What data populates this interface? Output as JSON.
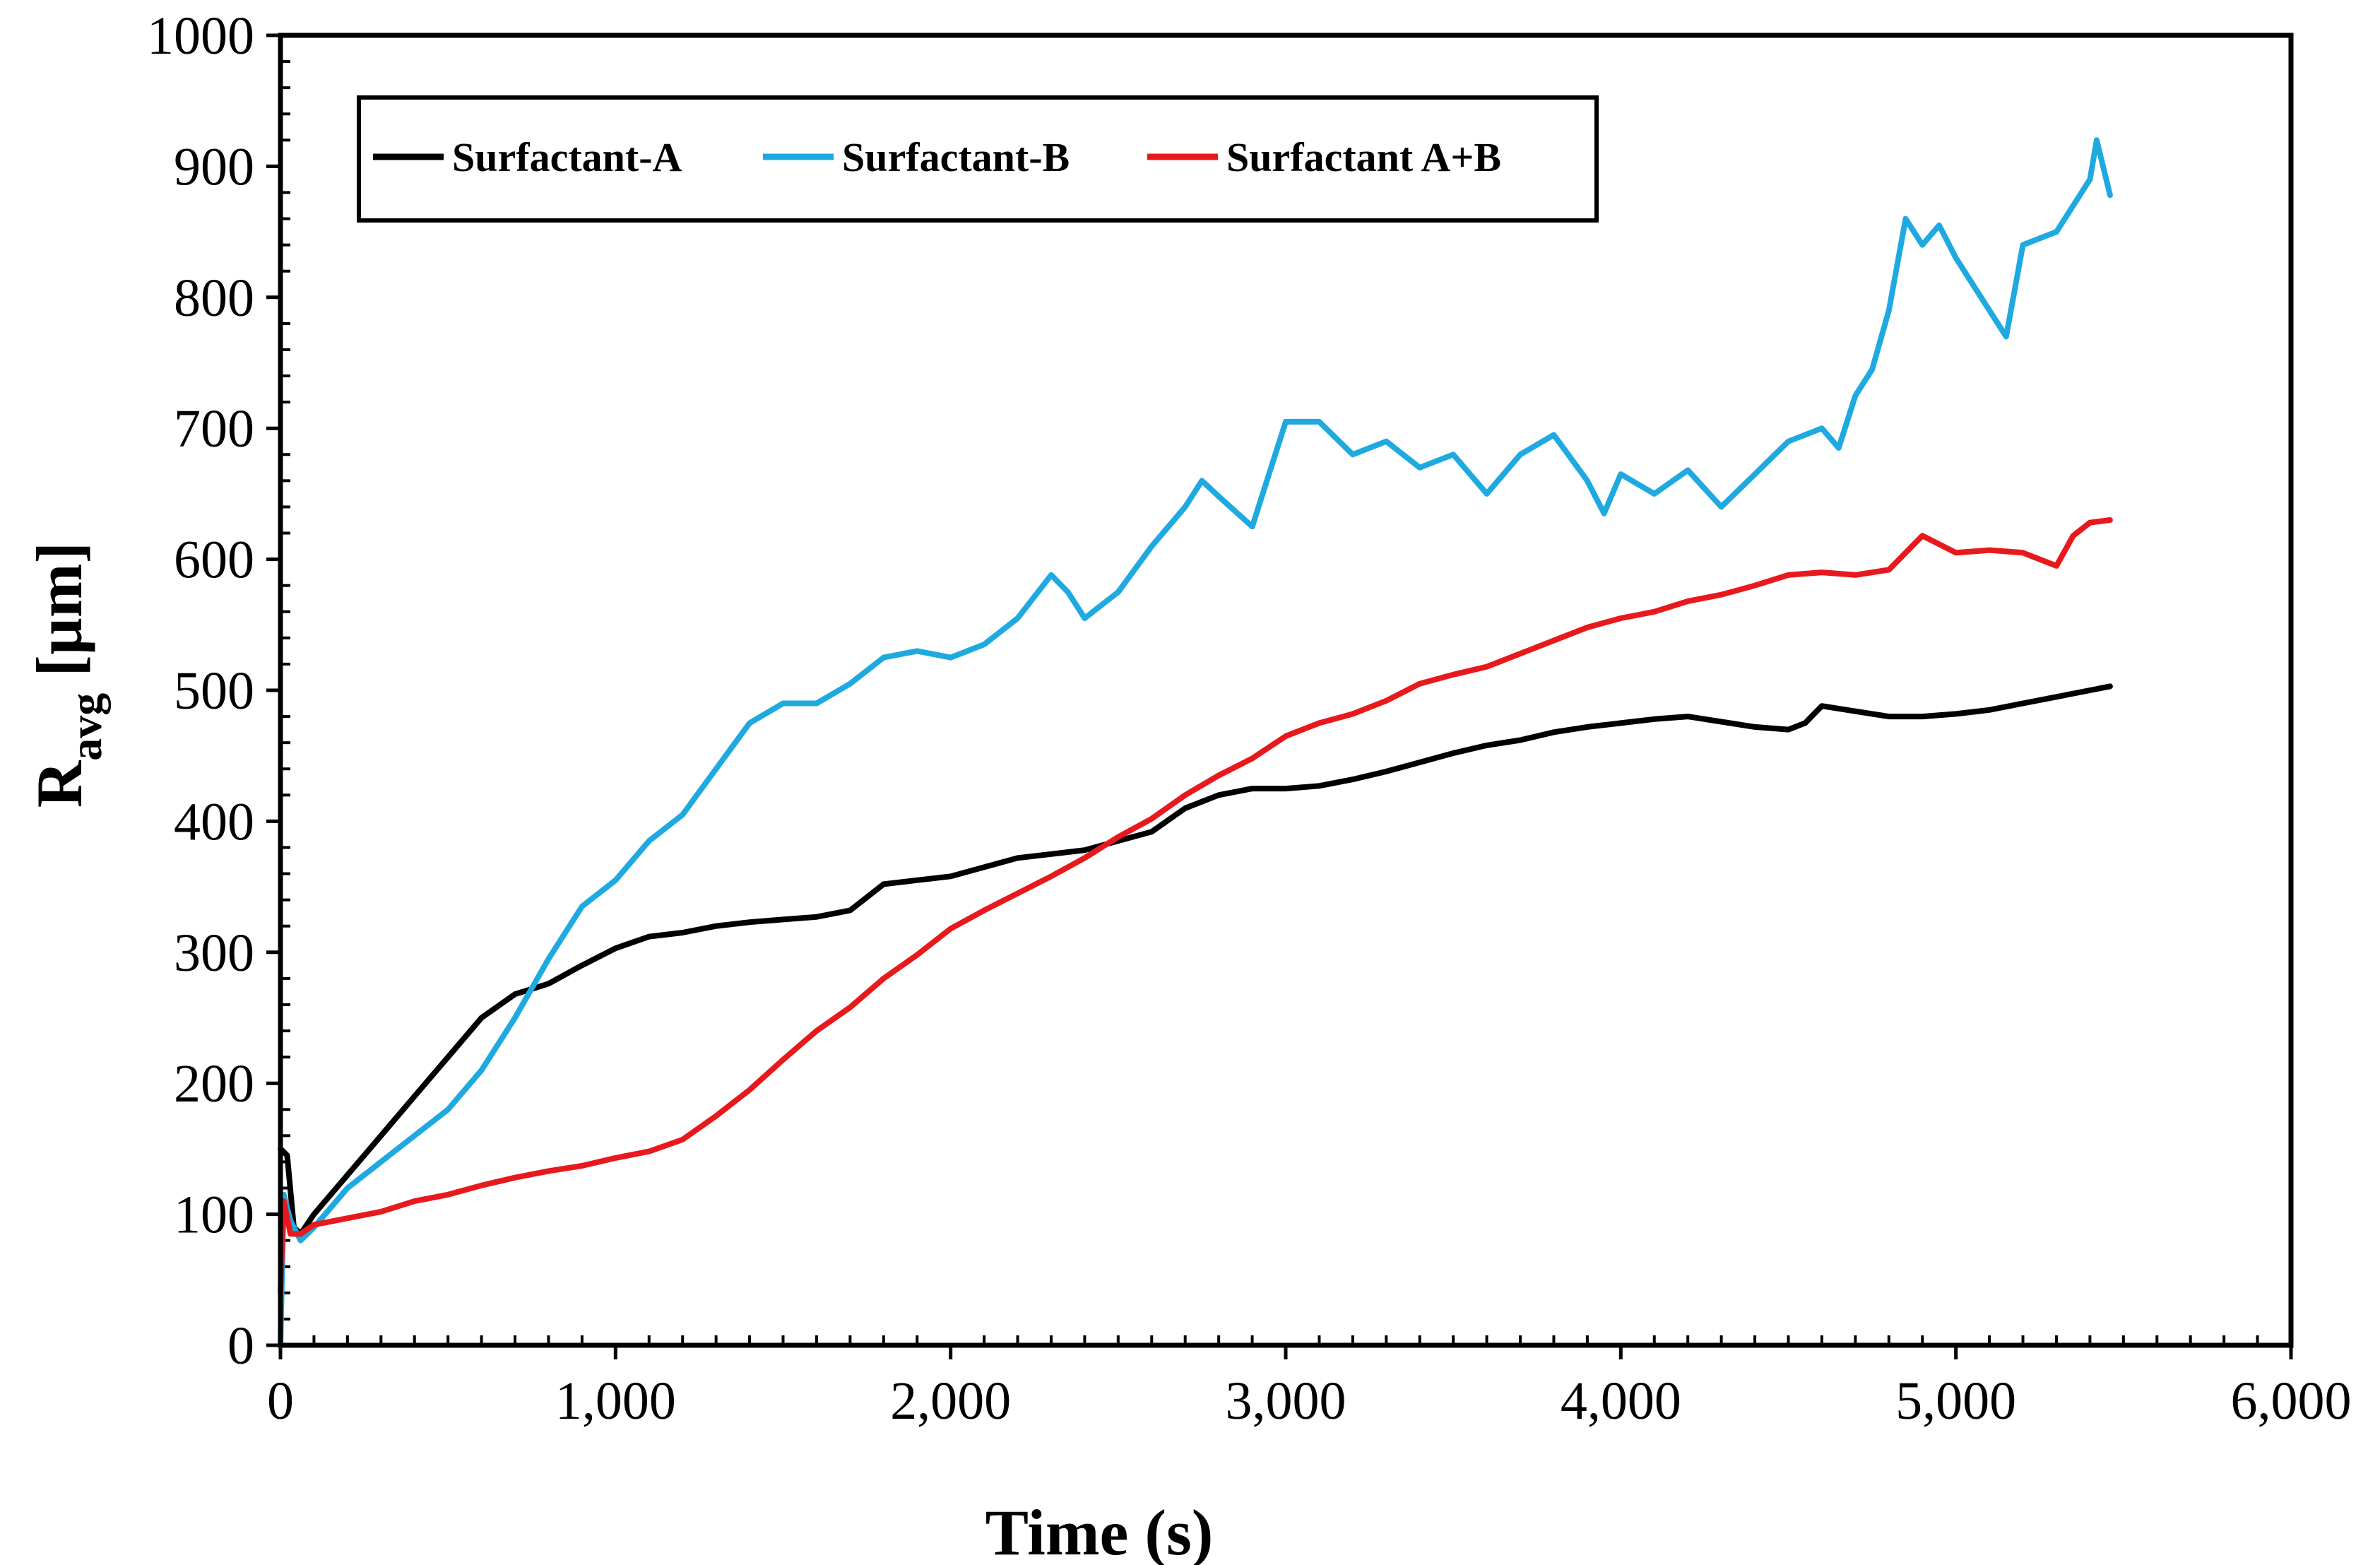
{
  "chart_data": {
    "type": "line",
    "title": "",
    "xlabel": "Time (s)",
    "ylabel_main": "R",
    "ylabel_sub": "avg",
    "ylabel_unit": " [µm]",
    "xlim": [
      0,
      6000
    ],
    "ylim": [
      0,
      1000
    ],
    "x_ticks": [
      0,
      1000,
      2000,
      3000,
      4000,
      5000,
      6000
    ],
    "x_tick_labels": [
      "0",
      "1,000",
      "2,000",
      "3,000",
      "4,000",
      "5,000",
      "6,000"
    ],
    "y_ticks": [
      0,
      100,
      200,
      300,
      400,
      500,
      600,
      700,
      800,
      900,
      1000
    ],
    "y_tick_labels": [
      "0",
      "100",
      "200",
      "300",
      "400",
      "500",
      "600",
      "700",
      "800",
      "900",
      "1000"
    ],
    "x_minor_step": 100,
    "y_minor_step": 20,
    "grid": false,
    "legend_position": "top-left",
    "series": [
      {
        "name": "Surfactant-A",
        "color": "#000000",
        "points": [
          [
            0,
            150
          ],
          [
            20,
            145
          ],
          [
            40,
            90
          ],
          [
            60,
            85
          ],
          [
            100,
            100
          ],
          [
            200,
            130
          ],
          [
            300,
            160
          ],
          [
            400,
            190
          ],
          [
            500,
            220
          ],
          [
            600,
            250
          ],
          [
            700,
            268
          ],
          [
            800,
            276
          ],
          [
            900,
            290
          ],
          [
            1000,
            303
          ],
          [
            1100,
            312
          ],
          [
            1200,
            315
          ],
          [
            1300,
            320
          ],
          [
            1400,
            323
          ],
          [
            1500,
            325
          ],
          [
            1600,
            327
          ],
          [
            1700,
            332
          ],
          [
            1800,
            352
          ],
          [
            1900,
            355
          ],
          [
            2000,
            358
          ],
          [
            2100,
            365
          ],
          [
            2200,
            372
          ],
          [
            2300,
            375
          ],
          [
            2400,
            378
          ],
          [
            2500,
            385
          ],
          [
            2600,
            392
          ],
          [
            2700,
            410
          ],
          [
            2800,
            420
          ],
          [
            2900,
            425
          ],
          [
            3000,
            425
          ],
          [
            3100,
            427
          ],
          [
            3200,
            432
          ],
          [
            3300,
            438
          ],
          [
            3400,
            445
          ],
          [
            3500,
            452
          ],
          [
            3600,
            458
          ],
          [
            3700,
            462
          ],
          [
            3800,
            468
          ],
          [
            3900,
            472
          ],
          [
            4000,
            475
          ],
          [
            4100,
            478
          ],
          [
            4200,
            480
          ],
          [
            4300,
            476
          ],
          [
            4400,
            472
          ],
          [
            4500,
            470
          ],
          [
            4550,
            475
          ],
          [
            4600,
            488
          ],
          [
            4700,
            484
          ],
          [
            4800,
            480
          ],
          [
            4900,
            480
          ],
          [
            5000,
            482
          ],
          [
            5100,
            485
          ],
          [
            5200,
            490
          ],
          [
            5300,
            495
          ],
          [
            5400,
            500
          ],
          [
            5460,
            503
          ]
        ]
      },
      {
        "name": "Surfactant-B",
        "color": "#1FA9E1",
        "points": [
          [
            0,
            0
          ],
          [
            10,
            115
          ],
          [
            30,
            95
          ],
          [
            60,
            80
          ],
          [
            100,
            90
          ],
          [
            200,
            120
          ],
          [
            300,
            140
          ],
          [
            400,
            160
          ],
          [
            500,
            180
          ],
          [
            600,
            210
          ],
          [
            700,
            250
          ],
          [
            800,
            295
          ],
          [
            900,
            335
          ],
          [
            1000,
            355
          ],
          [
            1100,
            385
          ],
          [
            1200,
            405
          ],
          [
            1300,
            440
          ],
          [
            1400,
            475
          ],
          [
            1500,
            490
          ],
          [
            1600,
            490
          ],
          [
            1700,
            505
          ],
          [
            1800,
            525
          ],
          [
            1900,
            530
          ],
          [
            2000,
            525
          ],
          [
            2100,
            535
          ],
          [
            2200,
            555
          ],
          [
            2300,
            588
          ],
          [
            2350,
            575
          ],
          [
            2400,
            555
          ],
          [
            2500,
            575
          ],
          [
            2600,
            610
          ],
          [
            2700,
            640
          ],
          [
            2750,
            660
          ],
          [
            2800,
            648
          ],
          [
            2900,
            625
          ],
          [
            3000,
            705
          ],
          [
            3100,
            705
          ],
          [
            3200,
            680
          ],
          [
            3300,
            690
          ],
          [
            3400,
            670
          ],
          [
            3500,
            680
          ],
          [
            3600,
            650
          ],
          [
            3700,
            680
          ],
          [
            3800,
            695
          ],
          [
            3900,
            660
          ],
          [
            3950,
            635
          ],
          [
            4000,
            665
          ],
          [
            4100,
            650
          ],
          [
            4200,
            668
          ],
          [
            4300,
            640
          ],
          [
            4400,
            665
          ],
          [
            4500,
            690
          ],
          [
            4600,
            700
          ],
          [
            4650,
            685
          ],
          [
            4700,
            725
          ],
          [
            4750,
            745
          ],
          [
            4800,
            790
          ],
          [
            4850,
            860
          ],
          [
            4900,
            840
          ],
          [
            4950,
            855
          ],
          [
            5000,
            830
          ],
          [
            5100,
            790
          ],
          [
            5150,
            770
          ],
          [
            5200,
            840
          ],
          [
            5300,
            850
          ],
          [
            5350,
            870
          ],
          [
            5400,
            890
          ],
          [
            5420,
            920
          ],
          [
            5460,
            878
          ]
        ]
      },
      {
        "name": "Surfactant A+B",
        "color": "#E8191D",
        "points": [
          [
            0,
            40
          ],
          [
            10,
            110
          ],
          [
            30,
            85
          ],
          [
            60,
            85
          ],
          [
            100,
            92
          ],
          [
            200,
            97
          ],
          [
            300,
            102
          ],
          [
            400,
            110
          ],
          [
            500,
            115
          ],
          [
            600,
            122
          ],
          [
            700,
            128
          ],
          [
            800,
            133
          ],
          [
            900,
            137
          ],
          [
            1000,
            143
          ],
          [
            1100,
            148
          ],
          [
            1200,
            157
          ],
          [
            1300,
            175
          ],
          [
            1400,
            195
          ],
          [
            1500,
            218
          ],
          [
            1600,
            240
          ],
          [
            1700,
            258
          ],
          [
            1800,
            280
          ],
          [
            1900,
            298
          ],
          [
            2000,
            318
          ],
          [
            2100,
            332
          ],
          [
            2200,
            345
          ],
          [
            2300,
            358
          ],
          [
            2400,
            372
          ],
          [
            2500,
            388
          ],
          [
            2600,
            402
          ],
          [
            2700,
            420
          ],
          [
            2800,
            435
          ],
          [
            2900,
            448
          ],
          [
            3000,
            465
          ],
          [
            3100,
            475
          ],
          [
            3200,
            482
          ],
          [
            3300,
            492
          ],
          [
            3400,
            505
          ],
          [
            3500,
            512
          ],
          [
            3600,
            518
          ],
          [
            3700,
            528
          ],
          [
            3800,
            538
          ],
          [
            3900,
            548
          ],
          [
            4000,
            555
          ],
          [
            4100,
            560
          ],
          [
            4200,
            568
          ],
          [
            4300,
            573
          ],
          [
            4400,
            580
          ],
          [
            4500,
            588
          ],
          [
            4600,
            590
          ],
          [
            4700,
            588
          ],
          [
            4800,
            592
          ],
          [
            4900,
            618
          ],
          [
            5000,
            605
          ],
          [
            5100,
            607
          ],
          [
            5200,
            605
          ],
          [
            5300,
            595
          ],
          [
            5350,
            618
          ],
          [
            5400,
            628
          ],
          [
            5460,
            630
          ]
        ]
      }
    ]
  }
}
